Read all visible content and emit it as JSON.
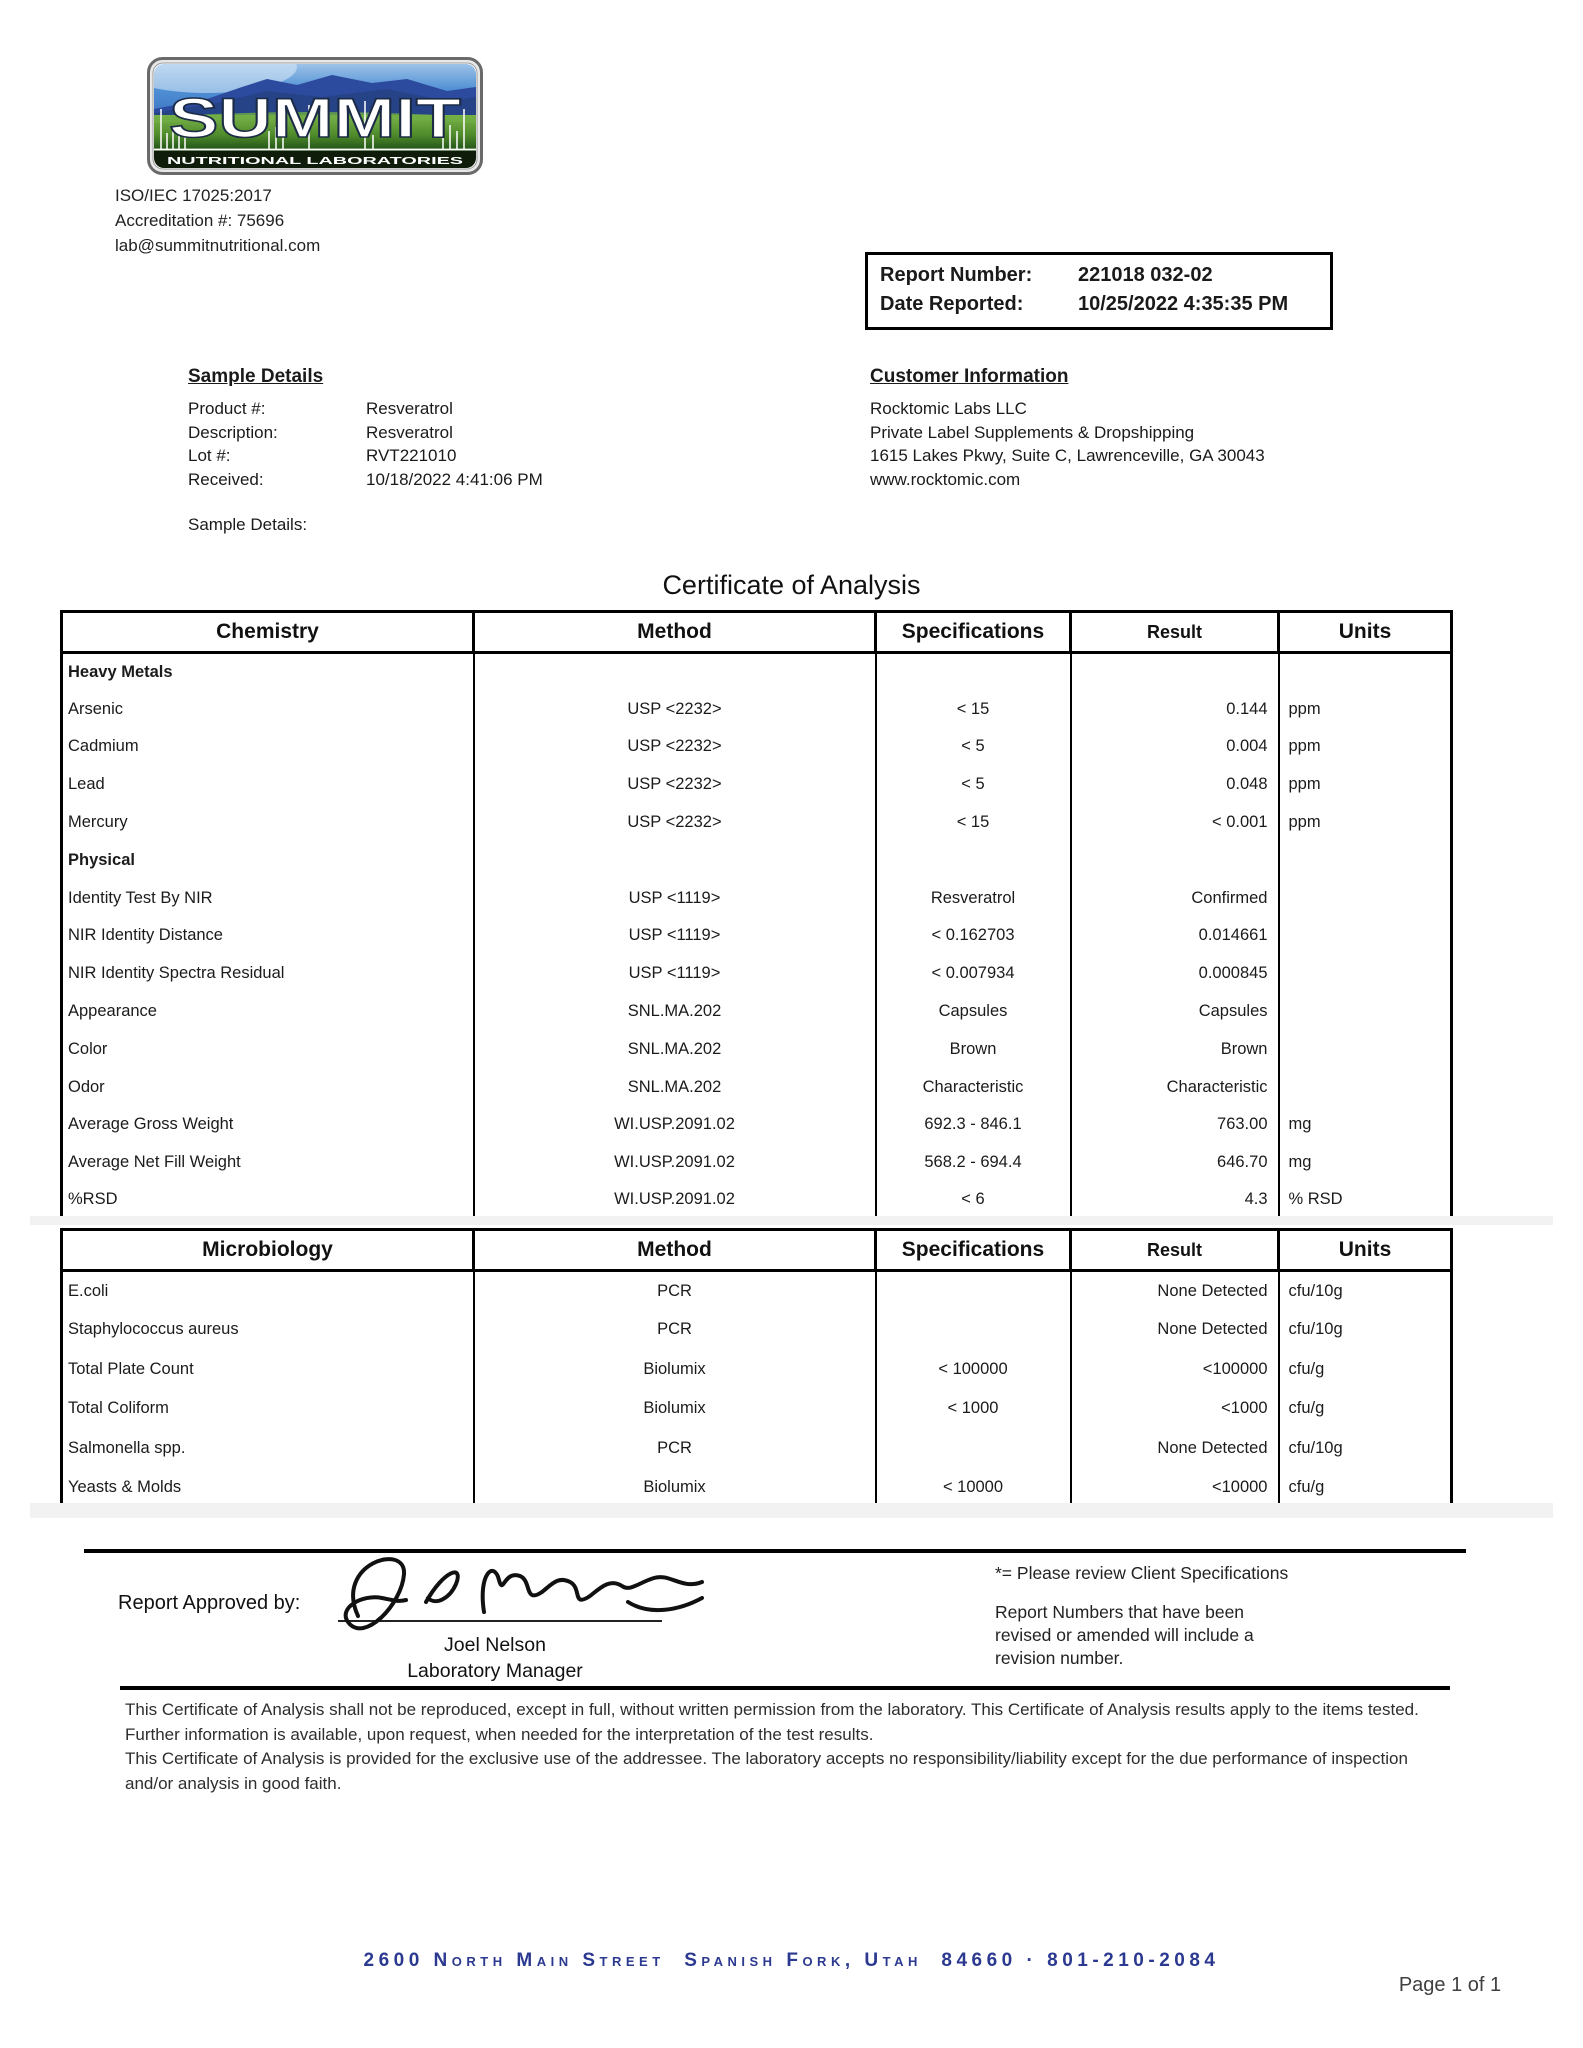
{
  "logo": {
    "brand": "SUMMIT",
    "tagline": "NUTRITIONAL LABORATORIES"
  },
  "accreditation": {
    "iso": "ISO/IEC 17025:2017",
    "number": "Accreditation #: 75696",
    "email": "lab@summitnutritional.com"
  },
  "report_box": {
    "report_number_label": "Report Number:",
    "report_number": "221018 032-02",
    "date_reported_label": "Date Reported:",
    "date_reported": "10/25/2022 4:35:35 PM"
  },
  "sample_details": {
    "title": "Sample Details",
    "fields": [
      {
        "label": "Product #:",
        "value": "Resveratrol"
      },
      {
        "label": "Description:",
        "value": "Resveratrol"
      },
      {
        "label": "Lot #:",
        "value": "RVT221010"
      },
      {
        "label": "Received:",
        "value": "10/18/2022 4:41:06 PM"
      }
    ],
    "extra_label": "Sample Details:"
  },
  "customer_information": {
    "title": "Customer Information",
    "lines": [
      "Rocktomic Labs LLC",
      "Private Label Supplements & Dropshipping",
      "1615 Lakes Pkwy, Suite C, Lawrenceville, GA 30043",
      "www.rocktomic.com"
    ]
  },
  "document_title": "Certificate of Analysis",
  "tables": [
    {
      "name": "Chemistry",
      "headers": [
        "Chemistry",
        "Method",
        "Specifications",
        "Result",
        "Units"
      ],
      "rows": [
        {
          "type": "section",
          "cells": [
            "Heavy Metals",
            "",
            "",
            "",
            ""
          ]
        },
        {
          "type": "data",
          "cells": [
            "Arsenic",
            "USP <2232>",
            "< 15",
            "0.144",
            "ppm"
          ]
        },
        {
          "type": "data",
          "cells": [
            "Cadmium",
            "USP <2232>",
            "< 5",
            "0.004",
            "ppm"
          ]
        },
        {
          "type": "data",
          "cells": [
            "Lead",
            "USP <2232>",
            "< 5",
            "0.048",
            "ppm"
          ]
        },
        {
          "type": "data",
          "cells": [
            "Mercury",
            "USP <2232>",
            "< 15",
            "< 0.001",
            "ppm"
          ]
        },
        {
          "type": "section",
          "cells": [
            "Physical",
            "",
            "",
            "",
            ""
          ]
        },
        {
          "type": "data",
          "cells": [
            "Identity Test By NIR",
            "USP <1119>",
            "Resveratrol",
            "Confirmed",
            ""
          ]
        },
        {
          "type": "data",
          "cells": [
            "NIR Identity Distance",
            "USP <1119>",
            "< 0.162703",
            "0.014661",
            ""
          ]
        },
        {
          "type": "data",
          "cells": [
            "NIR Identity Spectra Residual",
            "USP <1119>",
            "< 0.007934",
            "0.000845",
            ""
          ]
        },
        {
          "type": "data",
          "cells": [
            "Appearance",
            "SNL.MA.202",
            "Capsules",
            "Capsules",
            ""
          ]
        },
        {
          "type": "data",
          "cells": [
            "Color",
            "SNL.MA.202",
            "Brown",
            "Brown",
            ""
          ]
        },
        {
          "type": "data",
          "cells": [
            "Odor",
            "SNL.MA.202",
            "Characteristic",
            "Characteristic",
            ""
          ]
        },
        {
          "type": "data",
          "cells": [
            "Average Gross Weight",
            "WI.USP.2091.02",
            "692.3 - 846.1",
            "763.00",
            "mg"
          ]
        },
        {
          "type": "data",
          "cells": [
            "Average Net Fill Weight",
            "WI.USP.2091.02",
            "568.2 - 694.4",
            "646.70",
            "mg"
          ]
        },
        {
          "type": "data",
          "cells": [
            "%RSD",
            "WI.USP.2091.02",
            "< 6",
            "4.3",
            "% RSD"
          ]
        }
      ]
    },
    {
      "name": "Microbiology",
      "headers": [
        "Microbiology",
        "Method",
        "Specifications",
        "Result",
        "Units"
      ],
      "rows": [
        {
          "type": "data",
          "cells": [
            "E.coli",
            "PCR",
            "",
            "None Detected",
            "cfu/10g"
          ]
        },
        {
          "type": "data",
          "cells": [
            "Staphylococcus aureus",
            "PCR",
            "",
            "None Detected",
            "cfu/10g"
          ]
        },
        {
          "type": "data",
          "cells": [
            "Total Plate Count",
            "Biolumix",
            "< 100000",
            "<100000",
            "cfu/g"
          ]
        },
        {
          "type": "data",
          "cells": [
            "Total Coliform",
            "Biolumix",
            "< 1000",
            "<1000",
            "cfu/g"
          ]
        },
        {
          "type": "data",
          "cells": [
            "Salmonella spp.",
            "PCR",
            "",
            "None Detected",
            "cfu/10g"
          ]
        },
        {
          "type": "data",
          "cells": [
            "Yeasts & Molds",
            "Biolumix",
            "< 10000",
            "<10000",
            "cfu/g"
          ]
        }
      ]
    }
  ],
  "approval": {
    "label": "Report Approved by:",
    "signer_name": "Joel Nelson",
    "signer_title": "Laboratory Manager"
  },
  "notes": {
    "client_spec": "*= Please review Client Specifications",
    "revision": "Report Numbers that have been revised or amended will include a revision number."
  },
  "disclaimer": [
    "This Certificate of Analysis shall not be reproduced, except in full, without written permission from the laboratory. This Certificate of Analysis results apply to the items tested. Further information is available, upon request, when needed for the interpretation of the test results.",
    "This Certificate of Analysis is provided for the exclusive use of the addressee. The laboratory accepts no responsibility/liability except for the due performance of inspection and/or analysis in good faith."
  ],
  "footer": {
    "address": "2600 North Main Street  Spanish Fork, Utah  84660 · 801-210-2084",
    "page": "Page 1 of 1"
  },
  "colors": {
    "footer_blue": "#2b3990",
    "band_gray": "#f2f2f2",
    "logo_sky": "#4f8fd4",
    "logo_mountain": "#2c4a9e",
    "logo_field": "#5f9c33"
  }
}
